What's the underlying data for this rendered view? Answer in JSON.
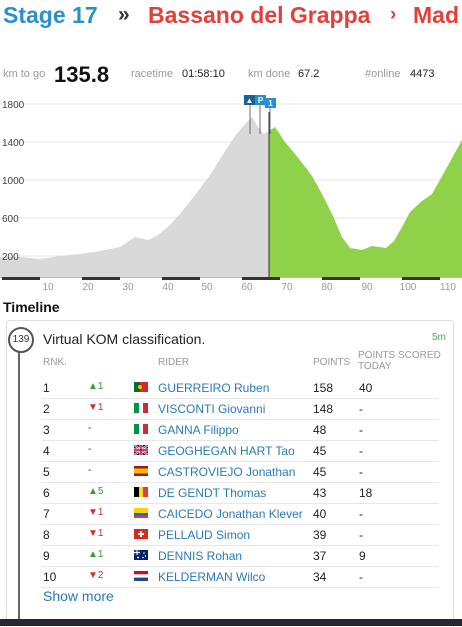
{
  "header": {
    "stage": "Stage 17",
    "sep1": "»",
    "from": "Bassano del Grappa",
    "sep2": "›",
    "to": "Mad"
  },
  "stats": {
    "km_to_go_label": "km to go",
    "km_to_go": "135.8",
    "racetime_label": "racetime",
    "racetime": "01:58:10",
    "km_done_label": "km done",
    "km_done": "67.2",
    "online_label": "#online",
    "online": "4473"
  },
  "profile": {
    "y_ticks": [
      "1800",
      "1400",
      "1000",
      "600",
      "200"
    ],
    "x_ticks": [
      "10",
      "20",
      "30",
      "40",
      "50",
      "60",
      "70",
      "80",
      "90",
      "100",
      "110"
    ],
    "markers": [
      "▲",
      "P",
      "1"
    ],
    "done_color": "#d9d9d9",
    "todo_color": "#8fd24a"
  },
  "timeline": {
    "title": "Timeline",
    "km_badge": "139",
    "card_title": "Virtual KOM classification.",
    "card_time": "5m",
    "headers": {
      "rank": "RNK.",
      "rider": "RIDER",
      "points": "POINTS",
      "today": "POINTS SCORED TODAY"
    },
    "rows": [
      {
        "rank": "1",
        "change": "▲1",
        "dir": "up",
        "flag": "PT",
        "name": "GUERREIRO Ruben",
        "points": "158",
        "today": "40"
      },
      {
        "rank": "2",
        "change": "▼1",
        "dir": "down",
        "flag": "IT",
        "name": "VISCONTI Giovanni",
        "points": "148",
        "today": "-"
      },
      {
        "rank": "3",
        "change": "-",
        "dir": "same",
        "flag": "IT",
        "name": "GANNA Filippo",
        "points": "48",
        "today": "-"
      },
      {
        "rank": "4",
        "change": "-",
        "dir": "same",
        "flag": "GB",
        "name": "GEOGHEGAN HART Tao",
        "points": "45",
        "today": "-"
      },
      {
        "rank": "5",
        "change": "-",
        "dir": "same",
        "flag": "ES",
        "name": "CASTROVIEJO Jonathan",
        "points": "45",
        "today": "-"
      },
      {
        "rank": "6",
        "change": "▲5",
        "dir": "up",
        "flag": "BE",
        "name": "DE GENDT Thomas",
        "points": "43",
        "today": "18"
      },
      {
        "rank": "7",
        "change": "▼1",
        "dir": "down",
        "flag": "EC",
        "name": "CAICEDO Jonathan Klever",
        "points": "40",
        "today": "-"
      },
      {
        "rank": "8",
        "change": "▼1",
        "dir": "down",
        "flag": "CH",
        "name": "PELLAUD Simon",
        "points": "39",
        "today": "-"
      },
      {
        "rank": "9",
        "change": "▲1",
        "dir": "up",
        "flag": "AU",
        "name": "DENNIS Rohan",
        "points": "37",
        "today": "9"
      },
      {
        "rank": "10",
        "change": "▼2",
        "dir": "down",
        "flag": "NL",
        "name": "KELDERMAN Wilco",
        "points": "34",
        "today": "-"
      }
    ],
    "show_more": "Show more"
  }
}
